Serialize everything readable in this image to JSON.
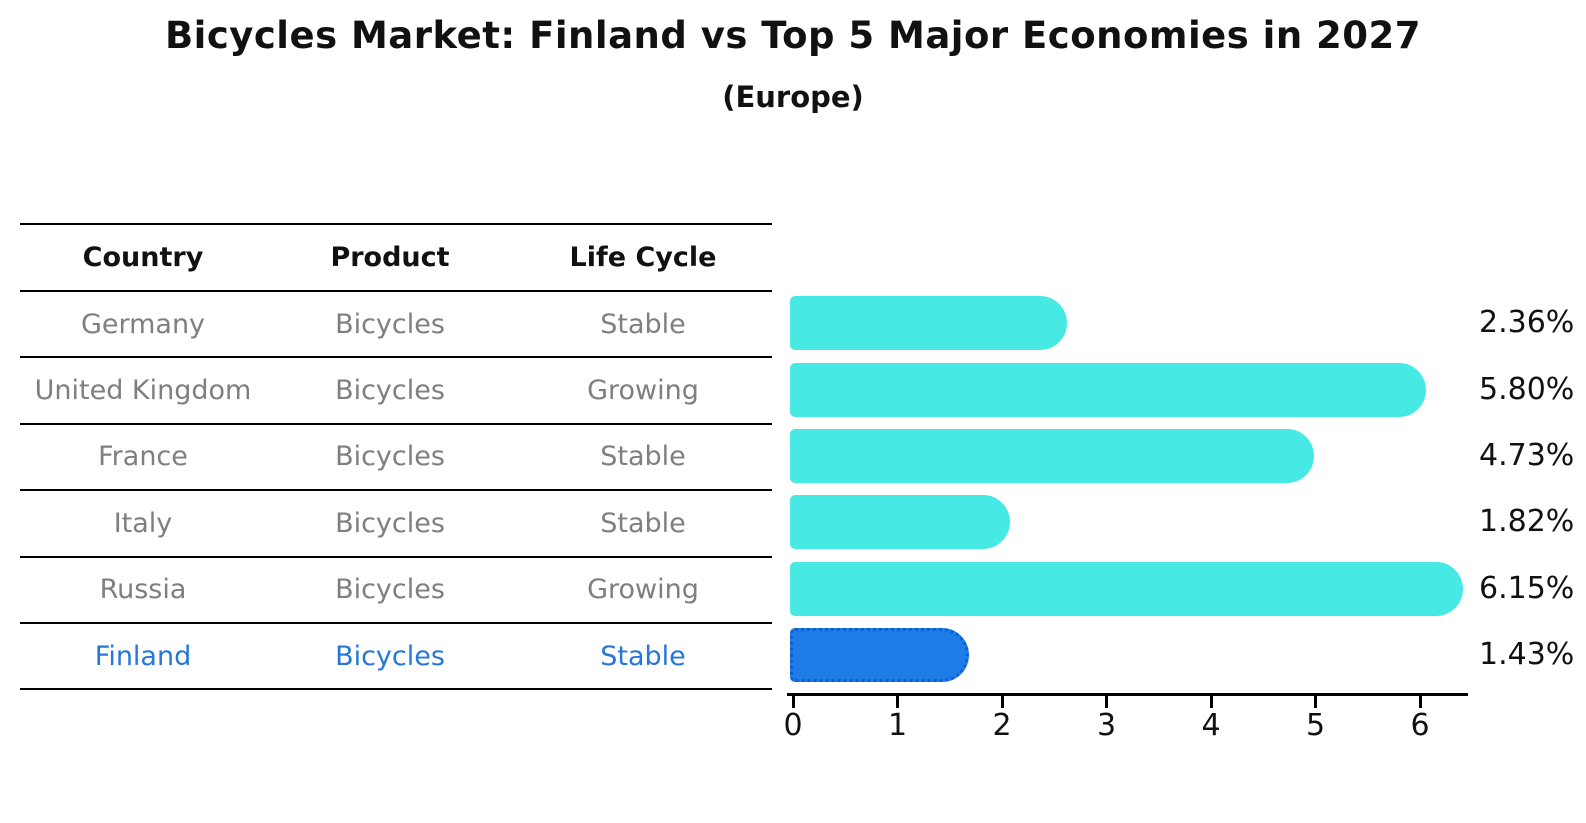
{
  "title": "Bicycles Market: Finland vs Top 5 Major Economies in 2027",
  "subtitle": "(Europe)",
  "table": {
    "headers": [
      "Country",
      "Product",
      "Life Cycle"
    ],
    "rows": [
      {
        "country": "Germany",
        "product": "Bicycles",
        "life_cycle": "Stable",
        "highlight": false
      },
      {
        "country": "United Kingdom",
        "product": "Bicycles",
        "life_cycle": "Growing",
        "highlight": false
      },
      {
        "country": "France",
        "product": "Bicycles",
        "life_cycle": "Stable",
        "highlight": false
      },
      {
        "country": "Italy",
        "product": "Bicycles",
        "life_cycle": "Stable",
        "highlight": false
      },
      {
        "country": "Russia",
        "product": "Bicycles",
        "life_cycle": "Growing",
        "highlight": false
      },
      {
        "country": "Finland",
        "product": "Bicycles",
        "life_cycle": "Stable",
        "highlight": true
      }
    ]
  },
  "chart_data": {
    "type": "bar",
    "orientation": "horizontal",
    "title": "Bicycles Market: Finland vs Top 5 Major Economies in 2027",
    "subtitle": "(Europe)",
    "categories": [
      "Germany",
      "United Kingdom",
      "France",
      "Italy",
      "Russia",
      "Finland"
    ],
    "values": [
      2.36,
      5.8,
      4.73,
      1.82,
      6.15,
      1.43
    ],
    "value_labels": [
      "2.36%",
      "5.80%",
      "4.73%",
      "1.82%",
      "6.15%",
      "1.43%"
    ],
    "highlight_category": "Finland",
    "xlabel": "",
    "ylabel": "",
    "xlim": [
      0,
      6.46
    ],
    "xticks": [
      0,
      1,
      2,
      3,
      4,
      5,
      6
    ],
    "grid": false,
    "legend": null,
    "bar_color": "#46e9e3",
    "highlight_bar_color": "#1e7ce6",
    "highlight_border_color": "#0d5fd6",
    "axis_color": "#000000",
    "label_color": "#111111",
    "row_text_color": "#7f7f7f",
    "highlight_text_color": "#2577d8"
  }
}
